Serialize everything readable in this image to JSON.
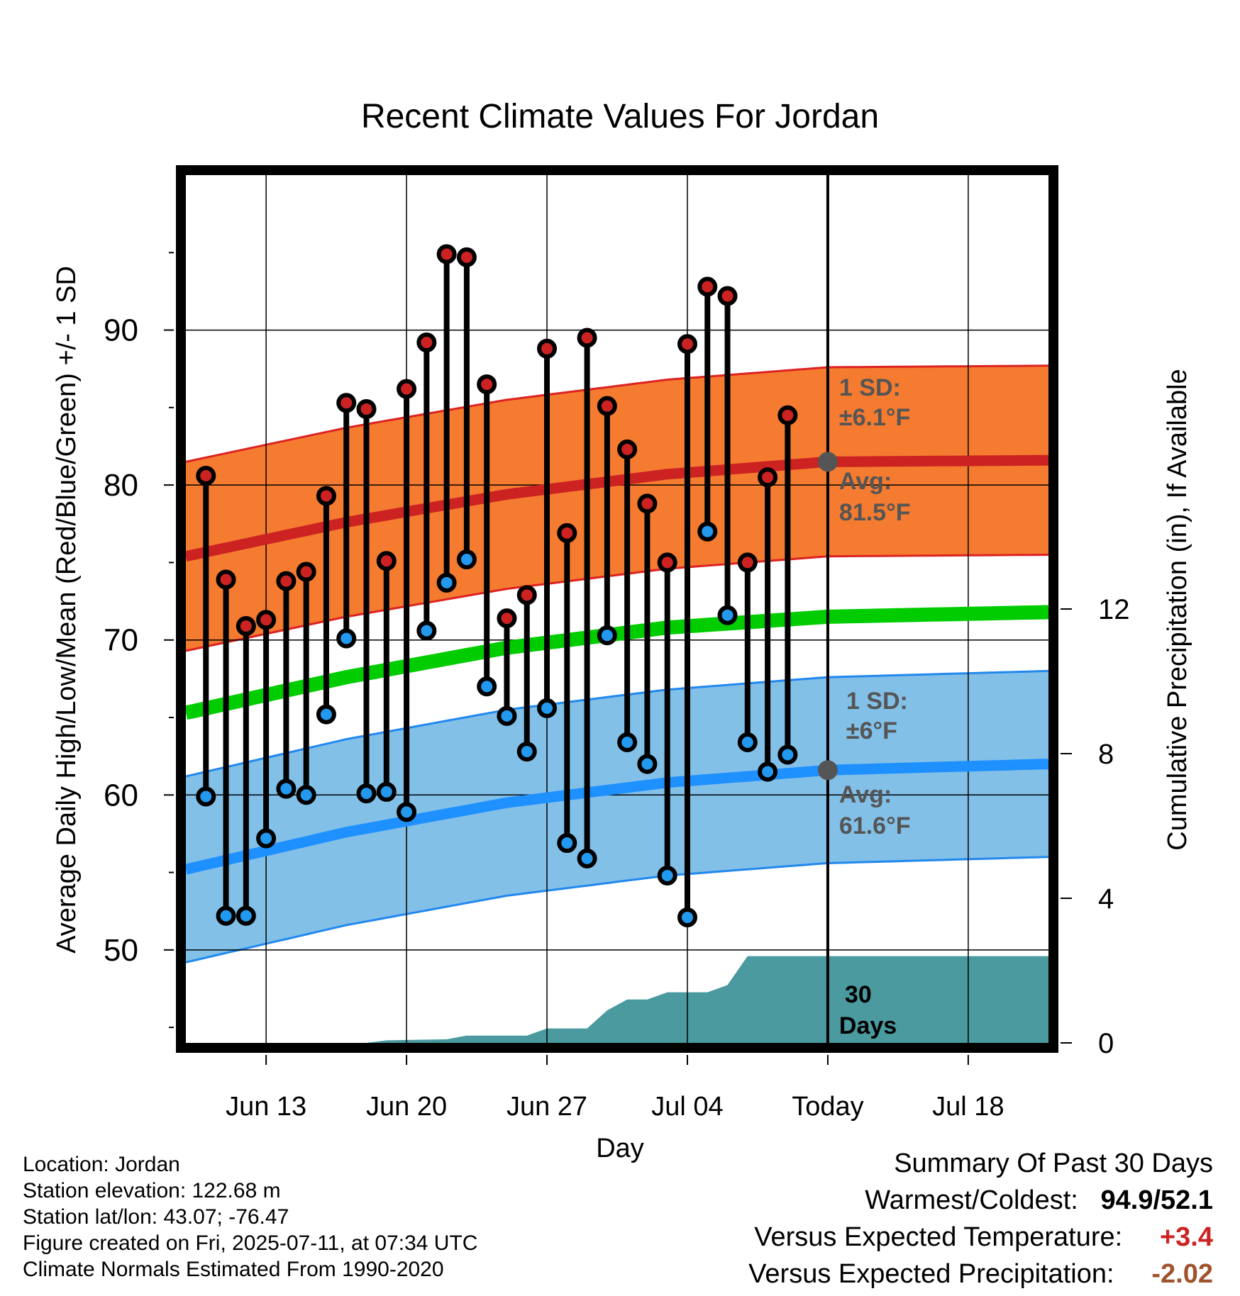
{
  "chart_data": {
    "type": "line",
    "title": "Recent Climate Values For Jordan",
    "xlabel": "Day",
    "ylabel": "Average Daily High/Low/Mean (Red/Blue/Green) +/- 1 SD",
    "y2label": "Cumulative Precipitation (in), If Available",
    "x_tick_labels": [
      "Jun 13",
      "Jun 20",
      "Jun 27",
      "Jul 04",
      "Today",
      "Jul 18"
    ],
    "x_tick_dates": [
      "2025-06-13",
      "2025-06-20",
      "2025-06-27",
      "2025-07-04",
      "2025-07-11",
      "2025-07-18"
    ],
    "xlim": [
      "2025-06-09",
      "2025-07-22"
    ],
    "today": "2025-07-11",
    "ylim": [
      44,
      100
    ],
    "y_ticks": [
      50,
      60,
      70,
      80,
      90
    ],
    "y2lim": [
      0,
      24
    ],
    "y2_ticks": [
      0,
      4,
      8,
      12
    ],
    "grid": true,
    "dates": [
      "2025-06-10",
      "2025-06-11",
      "2025-06-12",
      "2025-06-13",
      "2025-06-14",
      "2025-06-15",
      "2025-06-16",
      "2025-06-17",
      "2025-06-18",
      "2025-06-19",
      "2025-06-20",
      "2025-06-21",
      "2025-06-22",
      "2025-06-23",
      "2025-06-24",
      "2025-06-25",
      "2025-06-26",
      "2025-06-27",
      "2025-06-28",
      "2025-06-29",
      "2025-06-30",
      "2025-07-01",
      "2025-07-02",
      "2025-07-03",
      "2025-07-04",
      "2025-07-05",
      "2025-07-06",
      "2025-07-07",
      "2025-07-08",
      "2025-07-09",
      "2025-07-10"
    ],
    "series": [
      {
        "name": "High",
        "color": "#cc2222",
        "values": [
          80.6,
          73.9,
          70.9,
          71.3,
          73.8,
          74.4,
          79.3,
          85.3,
          84.9,
          75.1,
          86.2,
          89.2,
          94.9,
          94.7,
          86.5,
          71.4,
          72.9,
          88.8,
          76.9,
          89.5,
          85.1,
          82.3,
          78.8,
          75.0,
          89.1,
          92.8,
          92.2,
          75.0,
          80.5,
          84.5,
          null
        ]
      },
      {
        "name": "Low",
        "color": "#2299ee",
        "values": [
          59.9,
          52.2,
          52.2,
          57.2,
          60.4,
          60.0,
          65.2,
          70.1,
          60.1,
          60.2,
          58.9,
          70.6,
          73.7,
          75.2,
          67.0,
          65.1,
          62.8,
          65.6,
          56.9,
          55.9,
          70.3,
          63.4,
          62.0,
          54.8,
          52.1,
          77.0,
          71.6,
          63.4,
          61.5,
          62.6,
          null
        ]
      }
    ],
    "normals": {
      "dates": [
        "2025-06-09",
        "2025-06-17",
        "2025-06-25",
        "2025-07-03",
        "2025-07-11",
        "2025-07-22"
      ],
      "high_mean": [
        75.4,
        77.6,
        79.4,
        80.7,
        81.5,
        81.6
      ],
      "high_sd": 6.1,
      "low_mean": [
        55.2,
        57.6,
        59.5,
        60.8,
        61.6,
        62.0
      ],
      "low_sd": 6.0,
      "mean": [
        65.3,
        67.6,
        69.5,
        70.8,
        71.5,
        71.8
      ]
    },
    "precip": {
      "dates": [
        "2025-06-09",
        "2025-06-18",
        "2025-06-19",
        "2025-06-22",
        "2025-06-23",
        "2025-06-26",
        "2025-06-27",
        "2025-06-29",
        "2025-06-30",
        "2025-07-01",
        "2025-07-02",
        "2025-07-03",
        "2025-07-05",
        "2025-07-06",
        "2025-07-07",
        "2025-07-22"
      ],
      "values": [
        0,
        0,
        0.07,
        0.1,
        0.2,
        0.2,
        0.4,
        0.4,
        0.9,
        1.2,
        1.2,
        1.4,
        1.4,
        1.6,
        2.4,
        2.4
      ],
      "color": "#4a9aa0"
    },
    "annotations": {
      "high_sd_label_1": "1 SD:",
      "high_sd_label_2": "±6.1°F",
      "high_avg_label_1": "Avg:",
      "high_avg_label_2": "81.5°F",
      "low_sd_label_1": "1 SD:",
      "low_sd_label_2": "±6°F",
      "low_avg_label_1": "Avg:",
      "low_avg_label_2": "61.6°F",
      "days_label_1": "30",
      "days_label_2": "Days"
    },
    "colors": {
      "high_band": "#f47b30",
      "high_edge": "#dd2222",
      "high_mean_line": "#cc2222",
      "low_band": "#82c0e8",
      "low_edge": "#2288ee",
      "low_mean_line": "#1e90ff",
      "mean_line": "#00cc00",
      "annotation": "#555555"
    }
  },
  "info": {
    "location": "Location: Jordan",
    "elevation": "Station elevation: 122.68 m",
    "latlon": "Station lat/lon: 43.07; -76.47",
    "created": "Figure created on Fri, 2025-07-11, at 07:34 UTC",
    "normals": "Climate Normals Estimated From 1990-2020"
  },
  "summary": {
    "title": "Summary Of Past 30 Days",
    "warm_cold_label": "Warmest/Coldest:",
    "warm_cold_value": "94.9/52.1",
    "temp_label": "Versus Expected Temperature:",
    "temp_value": "+3.4",
    "temp_color": "#cc2222",
    "precip_label": "Versus Expected Precipitation:",
    "precip_value": "-2.02",
    "precip_color": "#a0522d"
  }
}
